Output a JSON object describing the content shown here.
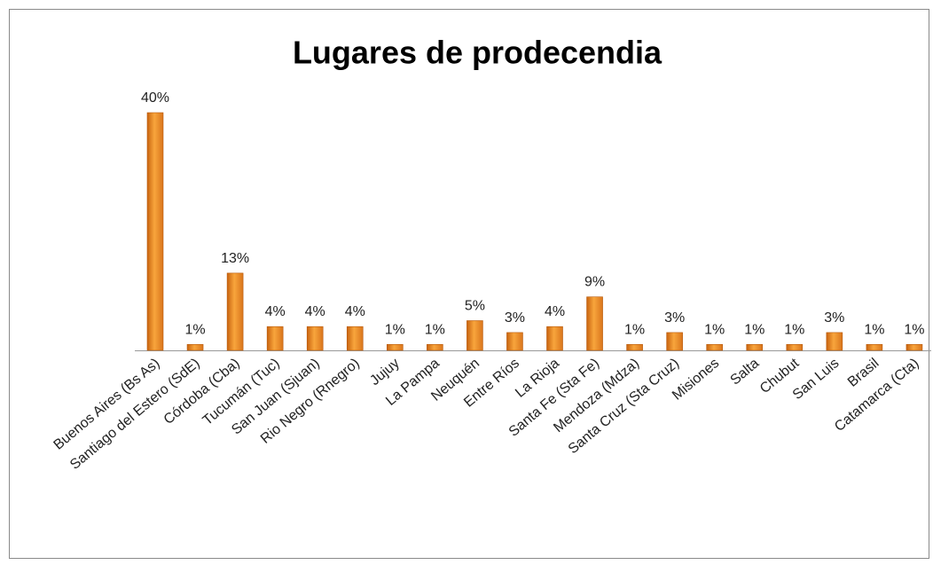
{
  "chart_data": {
    "type": "bar",
    "title": "Lugares de prodecendia",
    "categories": [
      "Buenos Aires (Bs As)",
      "Santiago del Estero (SdE)",
      "Córdoba (Cba)",
      "Tucumán (Tuc)",
      "San Juan (Sjuan)",
      "Rio Negro (Rnegro)",
      "Jujuy",
      "La Pampa",
      "Neuquén",
      "Entre Ríos",
      "La Rioja",
      "Santa Fe (Sta Fe)",
      "Mendoza (Mdza)",
      "Santa Cruz (Sta Cruz)",
      "Misiones",
      "Salta",
      "Chubut",
      "San Luis",
      "Brasil",
      "Catamarca (Cta)"
    ],
    "values": [
      40,
      1,
      13,
      4,
      4,
      4,
      1,
      1,
      5,
      3,
      4,
      9,
      1,
      3,
      1,
      1,
      1,
      3,
      1,
      1
    ],
    "value_labels": [
      "40%",
      "1%",
      "13%",
      "4%",
      "4%",
      "4%",
      "1%",
      "1%",
      "5%",
      "3%",
      "4%",
      "9%",
      "1%",
      "3%",
      "1%",
      "1%",
      "1%",
      "3%",
      "1%",
      "1%"
    ],
    "color": "#f39c2e"
  }
}
